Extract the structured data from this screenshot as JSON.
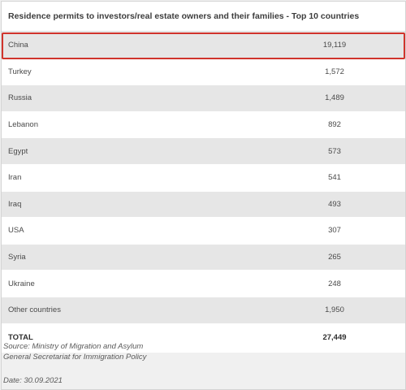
{
  "chart_data": {
    "type": "table",
    "title": "Residence permits to investors/real estate owners and their families - Top 10 countries",
    "highlighted_row": "China",
    "highlight_color": "#d0342c",
    "rows": [
      {
        "country": "China",
        "value": "19,119"
      },
      {
        "country": "Turkey",
        "value": "1,572"
      },
      {
        "country": "Russia",
        "value": "1,489"
      },
      {
        "country": "Lebanon",
        "value": "892"
      },
      {
        "country": "Egypt",
        "value": "573"
      },
      {
        "country": "Iran",
        "value": "541"
      },
      {
        "country": "Iraq",
        "value": "493"
      },
      {
        "country": "USA",
        "value": "307"
      },
      {
        "country": "Syria",
        "value": "265"
      },
      {
        "country": "Ukraine",
        "value": "248"
      },
      {
        "country": "Other countries",
        "value": "1,950"
      }
    ],
    "total": {
      "label": "TOTAL",
      "value": "27,449"
    }
  },
  "footer": {
    "source_line1": "Source: Ministry of Migration and Asylum",
    "source_line2": "General Secretariat for Immigration Policy",
    "date": "Date: 30.09.2021"
  }
}
